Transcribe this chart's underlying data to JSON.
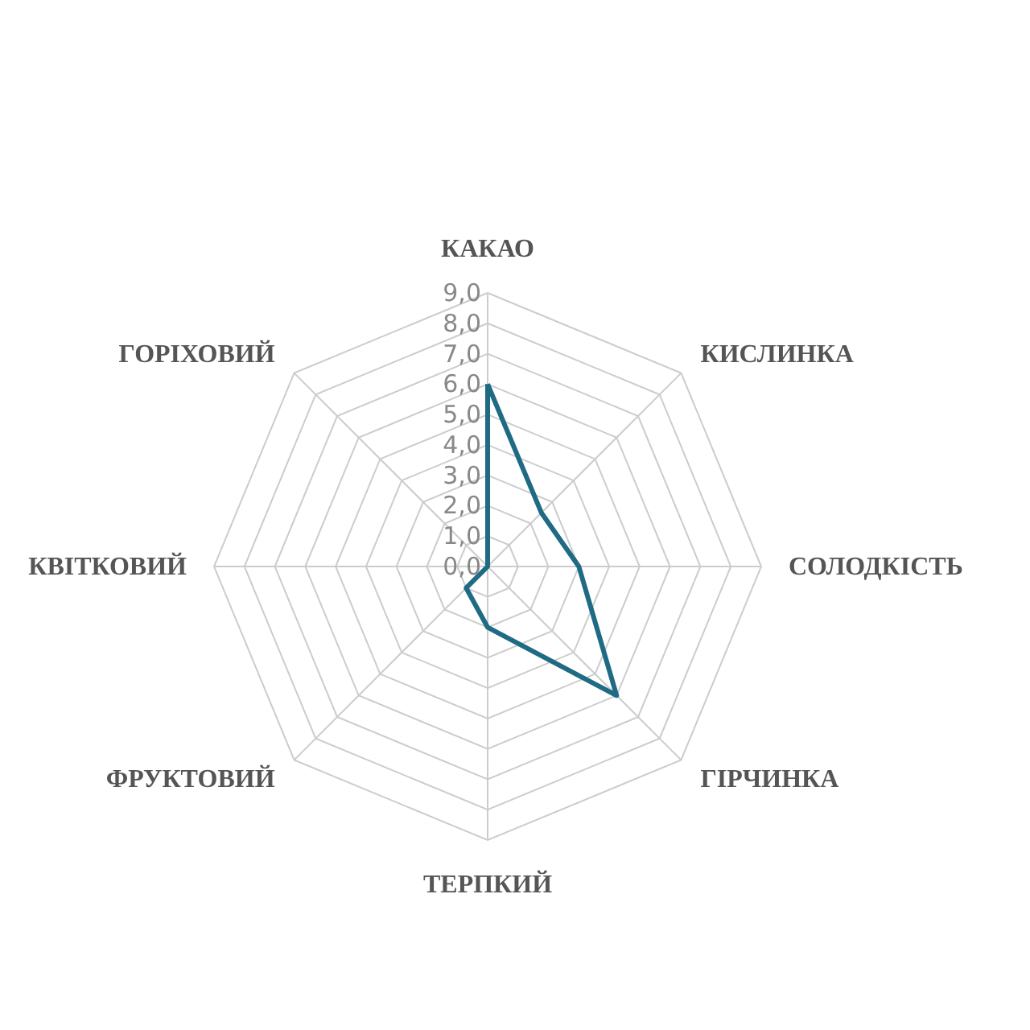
{
  "chart_data": {
    "type": "radar",
    "categories": [
      "КАКАО",
      "КИСЛИНКА",
      "СОЛОДКІСТЬ",
      "ГІРЧИНКА",
      "ТЕРПКИЙ",
      "ФРУКТОВИЙ",
      "КВІТКОВИЙ",
      "ГОРІХОВИЙ"
    ],
    "series": [
      {
        "color": "#1f6b84",
        "values": [
          6,
          2.5,
          3,
          6,
          2,
          1,
          0,
          0
        ]
      }
    ],
    "ylim": [
      0,
      9
    ],
    "yticks": [
      {
        "value": 0,
        "label": "0,0"
      },
      {
        "value": 1,
        "label": "1,0"
      },
      {
        "value": 2,
        "label": "2,0"
      },
      {
        "value": 3,
        "label": "3,0"
      },
      {
        "value": 4,
        "label": "4,0"
      },
      {
        "value": 5,
        "label": "5,0"
      },
      {
        "value": 6,
        "label": "6,0"
      },
      {
        "value": 7,
        "label": "7,0"
      },
      {
        "value": 8,
        "label": "8,0"
      },
      {
        "value": 9,
        "label": "9,0"
      }
    ],
    "grid": true,
    "marker": "none"
  }
}
